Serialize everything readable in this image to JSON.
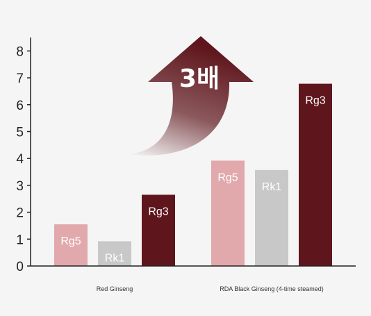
{
  "chart_data": {
    "type": "bar",
    "title": "",
    "xlabel": "",
    "ylabel": "",
    "ylim": [
      0,
      8.5
    ],
    "yticks": [
      0,
      1,
      2,
      3,
      4,
      5,
      6,
      7,
      8
    ],
    "grid": false,
    "groups": [
      {
        "label": "Red Ginseng",
        "bars": [
          {
            "name": "Rg5",
            "value": 1.55
          },
          {
            "name": "Rk1",
            "value": 0.92
          },
          {
            "name": "Rg3",
            "value": 2.65
          }
        ]
      },
      {
        "label": "RDA Black Ginseng (4-time steamed)",
        "bars": [
          {
            "name": "Rg5",
            "value": 3.92
          },
          {
            "name": "Rk1",
            "value": 3.57
          },
          {
            "name": "Rg3",
            "value": 6.78
          }
        ]
      }
    ],
    "colors": {
      "Rg5": "#e2a9ad",
      "Rk1": "#c8c8c8",
      "Rg3": "#5e161c"
    },
    "annotation": {
      "text": "3배",
      "icon": "curved-up-arrow-icon",
      "color": "#5e161c"
    }
  }
}
